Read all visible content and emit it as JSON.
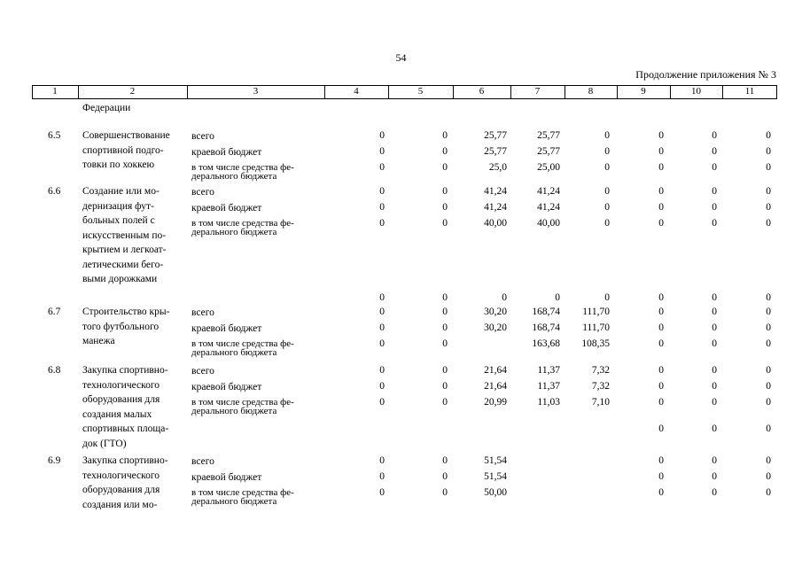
{
  "page_number": "54",
  "continuation": "Продолжение приложения № 3",
  "header": [
    "1",
    "2",
    "3",
    "4",
    "5",
    "6",
    "7",
    "8",
    "9",
    "10",
    "11"
  ],
  "top_text": "Федерации",
  "rows": [
    {
      "id": "6.5",
      "name": [
        "Совершенствование",
        "спортивной подго-",
        "товки по хоккею"
      ],
      "lines": [
        {
          "cat": [
            "всего"
          ],
          "v": [
            "0",
            "0",
            "25,77",
            "25,77",
            "0",
            "0",
            "0",
            "0"
          ]
        },
        {
          "cat": [
            "краевой бюджет"
          ],
          "v": [
            "0",
            "0",
            "25,77",
            "25,77",
            "0",
            "0",
            "0",
            "0"
          ]
        },
        {
          "cat": [
            "в том числе средства фе-",
            "дерального бюджета"
          ],
          "v": [
            "0",
            "0",
            "25,0",
            "25,00",
            "0",
            "0",
            "0",
            "0"
          ]
        }
      ]
    },
    {
      "id": "6.6",
      "name": [
        "Создание или мо-",
        "дернизация фут-",
        "больных полей с",
        "искусственным по-",
        "крытием и легкоат-",
        "летическими бего-",
        "выми дорожками"
      ],
      "lines": [
        {
          "cat": [
            "всего"
          ],
          "v": [
            "0",
            "0",
            "41,24",
            "41,24",
            "0",
            "0",
            "0",
            "0"
          ]
        },
        {
          "cat": [
            "краевой бюджет"
          ],
          "v": [
            "0",
            "0",
            "41,24",
            "41,24",
            "0",
            "0",
            "0",
            "0"
          ]
        },
        {
          "cat": [
            "в том числе средства фе-",
            "дерального бюджета"
          ],
          "v": [
            "0",
            "0",
            "40,00",
            "40,00",
            "0",
            "0",
            "0",
            "0"
          ]
        }
      ]
    },
    {
      "id": "",
      "name": [],
      "lines": [
        {
          "cat": [],
          "v": [
            "0",
            "0",
            "0",
            "0",
            "0",
            "0",
            "0",
            "0"
          ]
        }
      ]
    },
    {
      "id": "6.7",
      "name": [
        "Строительство кры-",
        "того футбольного",
        "манежа"
      ],
      "lines": [
        {
          "cat": [
            "всего"
          ],
          "v": [
            "0",
            "0",
            "30,20",
            "168,74",
            "111,70",
            "0",
            "0",
            "0"
          ]
        },
        {
          "cat": [
            "краевой бюджет"
          ],
          "v": [
            "0",
            "0",
            "30,20",
            "168,74",
            "111,70",
            "0",
            "0",
            "0"
          ]
        },
        {
          "cat": [
            "в том числе средства фе-",
            "дерального бюджета"
          ],
          "v": [
            "0",
            "0",
            "",
            "163,68",
            "108,35",
            "0",
            "0",
            "0"
          ]
        }
      ]
    },
    {
      "id": "6.8",
      "name": [
        "Закупка спортивно-",
        "технологического",
        "оборудования для",
        "создания малых",
        "спортивных площа-",
        "док (ГТО)"
      ],
      "lines": [
        {
          "cat": [
            "всего"
          ],
          "v": [
            "0",
            "0",
            "21,64",
            "11,37",
            "7,32",
            "0",
            "0",
            "0"
          ]
        },
        {
          "cat": [
            "краевой бюджет"
          ],
          "v": [
            "0",
            "0",
            "21,64",
            "11,37",
            "7,32",
            "0",
            "0",
            "0"
          ]
        },
        {
          "cat": [
            "в том числе средства фе-",
            "дерального бюджета"
          ],
          "v": [
            "0",
            "0",
            "20,99",
            "11,03",
            "7,10",
            "0",
            "0",
            "0"
          ]
        },
        {
          "cat": [],
          "v": [
            "",
            "",
            "",
            "",
            "",
            "0",
            "0",
            "0"
          ]
        }
      ]
    },
    {
      "id": "6.9",
      "name": [
        "Закупка спортивно-",
        "технологического",
        "оборудования для",
        "создания или мо-"
      ],
      "lines": [
        {
          "cat": [
            "всего"
          ],
          "v": [
            "0",
            "0",
            "51,54",
            "",
            "",
            "0",
            "0",
            "0"
          ]
        },
        {
          "cat": [
            "краевой бюджет"
          ],
          "v": [
            "0",
            "0",
            "51,54",
            "",
            "",
            "0",
            "0",
            "0"
          ]
        },
        {
          "cat": [
            "в том числе средства фе-",
            "дерального бюджета"
          ],
          "v": [
            "0",
            "0",
            "50,00",
            "",
            "",
            "0",
            "0",
            "0"
          ]
        }
      ]
    }
  ]
}
